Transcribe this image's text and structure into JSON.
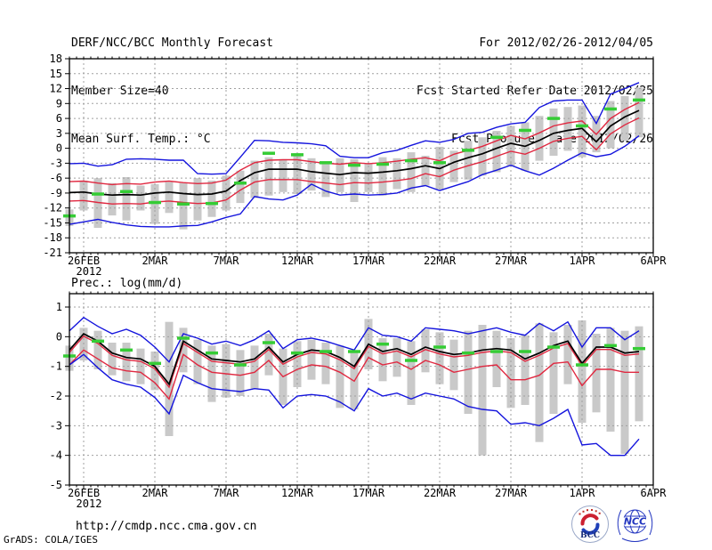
{
  "header": {
    "title": "DERF/NCC/BCC Monthly Forecast",
    "member_size": "Member Size=40",
    "variable_label": "Mean Surf. Temp.: °C",
    "for_range": "For 2012/02/26-2012/04/05",
    "refer_date": "Fcst Started Refer Date 2012/02/25",
    "produced_date": "Fcst Produced Date 2012/02/26"
  },
  "prec_label": "Prec.: log(mm/d)",
  "footer": {
    "url": "http://cmdp.ncc.cma.gov.cn",
    "credit": "GrADS: COLA/IGES",
    "logos": [
      {
        "label": "BCC"
      },
      {
        "label": "NCC"
      }
    ]
  },
  "colors": {
    "envelope": "#1414dd",
    "quartile": "#e02840",
    "median": "#000000",
    "observation": "#35cc35",
    "spread_bar": "#c9c9c9",
    "grid": "#a0a0a0",
    "frame": "#000000"
  },
  "chart_data": [
    {
      "id": "temperature-chart",
      "type": "line",
      "title": "Mean Surf. Temp.: °C",
      "ylim": [
        -21,
        18
      ],
      "yticks": [
        18,
        15,
        12,
        9,
        6,
        3,
        0,
        -3,
        -6,
        -9,
        -12,
        -15,
        -18,
        -21
      ],
      "grid": true,
      "x_axis": {
        "days_span": 41,
        "tick_days": [
          1,
          6,
          11,
          16,
          21,
          26,
          31,
          36,
          41
        ],
        "tick_labels": [
          "26FEB",
          "2MAR",
          "7MAR",
          "12MAR",
          "17MAR",
          "22MAR",
          "27MAR",
          "1APR",
          "6APR"
        ],
        "year_label": "2012"
      },
      "series": [
        {
          "name": "envelope-upper",
          "color": "#1414dd",
          "values": [
            -3.1,
            -3.0,
            -3.6,
            -3.3,
            -2.2,
            -2.1,
            -2.2,
            -2.4,
            -2.4,
            -5.1,
            -5.2,
            -5.1,
            -1.8,
            1.6,
            1.5,
            1.2,
            1.1,
            0.9,
            0.5,
            -1.6,
            -1.9,
            -1.9,
            -0.9,
            -0.4,
            0.6,
            1.5,
            1.2,
            1.8,
            3.0,
            3.2,
            4.2,
            4.9,
            5.2,
            8.2,
            9.5,
            9.7,
            9.7,
            5.0,
            10.9,
            12.0,
            13.2
          ]
        },
        {
          "name": "quartile-upper",
          "color": "#e02840",
          "values": [
            -6.7,
            -6.6,
            -7.0,
            -7.3,
            -7.1,
            -7.2,
            -6.8,
            -6.6,
            -6.9,
            -7.1,
            -7.0,
            -6.4,
            -4.4,
            -2.9,
            -2.4,
            -2.3,
            -2.3,
            -2.7,
            -3.0,
            -3.2,
            -2.9,
            -3.1,
            -2.9,
            -2.6,
            -2.2,
            -1.9,
            -2.5,
            -1.2,
            -0.4,
            0.4,
            1.5,
            2.6,
            1.9,
            3.1,
            4.5,
            5.1,
            5.5,
            2.8,
            6.0,
            7.8,
            9.2
          ]
        },
        {
          "name": "median",
          "color": "#000000",
          "values": [
            -8.9,
            -8.8,
            -9.2,
            -9.4,
            -9.3,
            -9.4,
            -9.0,
            -8.8,
            -9.1,
            -9.3,
            -9.2,
            -8.6,
            -6.5,
            -4.9,
            -4.2,
            -4.2,
            -4.2,
            -4.7,
            -5.0,
            -5.3,
            -4.9,
            -5.0,
            -4.8,
            -4.5,
            -4.1,
            -3.5,
            -4.1,
            -2.8,
            -1.9,
            -1.1,
            0.0,
            1.0,
            0.4,
            1.6,
            3.0,
            3.6,
            4.0,
            1.3,
            4.5,
            6.3,
            7.6
          ]
        },
        {
          "name": "quartile-lower",
          "color": "#e02840",
          "values": [
            -10.6,
            -10.5,
            -10.9,
            -11.2,
            -11.1,
            -11.2,
            -10.8,
            -10.6,
            -10.9,
            -11.1,
            -11.0,
            -10.4,
            -8.4,
            -6.8,
            -6.3,
            -6.3,
            -6.3,
            -6.7,
            -7.0,
            -7.3,
            -6.9,
            -7.0,
            -6.8,
            -6.5,
            -6.1,
            -5.1,
            -5.7,
            -4.4,
            -3.5,
            -2.7,
            -1.6,
            -0.6,
            -1.2,
            0.0,
            1.4,
            2.0,
            2.4,
            -0.3,
            2.9,
            4.7,
            6.1
          ]
        },
        {
          "name": "envelope-lower",
          "color": "#1414dd",
          "values": [
            -15.3,
            -14.8,
            -14.3,
            -14.9,
            -15.4,
            -15.7,
            -15.8,
            -15.8,
            -15.6,
            -15.5,
            -14.8,
            -13.9,
            -13.2,
            -9.7,
            -10.2,
            -10.4,
            -9.4,
            -7.2,
            -8.6,
            -9.4,
            -9.2,
            -9.4,
            -9.3,
            -9.0,
            -8.0,
            -7.5,
            -8.5,
            -7.6,
            -6.7,
            -5.3,
            -4.4,
            -3.4,
            -4.5,
            -5.4,
            -4.0,
            -2.4,
            -0.9,
            -1.7,
            -1.2,
            0.4,
            2.5
          ]
        }
      ],
      "observation": {
        "name": "observation-dashes",
        "color": "#35cc35",
        "days": [
          0,
          2,
          4,
          6,
          8,
          10,
          12,
          14,
          16,
          18,
          20,
          22,
          24,
          26,
          28,
          30,
          32,
          34,
          36,
          38,
          40
        ],
        "values": [
          -13.6,
          -9.2,
          -8.7,
          -10.9,
          -11.2,
          -11.1,
          -7.0,
          -1.0,
          -1.3,
          -2.9,
          -3.4,
          -3.2,
          -2.5,
          -2.9,
          -0.4,
          2.2,
          3.6,
          6.0,
          4.5,
          7.9,
          9.7
        ]
      },
      "spread_bars": {
        "name": "member-spread-bars",
        "color": "#c9c9c9",
        "start_day": 0,
        "step": 1,
        "low": [
          -15.6,
          -12.5,
          -16.0,
          -13.5,
          -14.5,
          -12.5,
          -15.2,
          -13.0,
          -16.3,
          -14.5,
          -13.8,
          -12.5,
          -11.0,
          -10.0,
          -9.5,
          -8.8,
          -9.2,
          -8.5,
          -9.8,
          -8.8,
          -10.8,
          -8.8,
          -9.5,
          -8.2,
          -8.8,
          -7.5,
          -8.2,
          -6.8,
          -6.3,
          -5.5,
          -4.8,
          -3.5,
          -4.5,
          -2.5,
          -1.5,
          -0.5,
          -1.8,
          -0.8,
          0.0,
          1.5,
          2.2
        ],
        "high": [
          -12.3,
          -6.5,
          -6.0,
          -7.0,
          -5.8,
          -7.5,
          -7.2,
          -6.8,
          -7.0,
          -6.0,
          -6.5,
          -5.5,
          -4.5,
          -2.5,
          -1.8,
          -2.2,
          -1.0,
          -2.0,
          -2.8,
          -2.0,
          -2.2,
          -3.0,
          -1.8,
          -2.0,
          -0.8,
          -1.5,
          0.3,
          -0.5,
          1.5,
          2.2,
          3.5,
          4.5,
          5.2,
          6.5,
          8.0,
          8.3,
          8.6,
          6.5,
          9.5,
          10.5,
          12.2
        ]
      }
    },
    {
      "id": "precipitation-chart",
      "type": "line",
      "title": "Prec.: log(mm/d)",
      "ylim": [
        -5,
        1.45
      ],
      "yticks": [
        1,
        0,
        -1,
        -2,
        -3,
        -4,
        -5
      ],
      "grid": true,
      "x_axis": {
        "days_span": 41,
        "tick_days": [
          1,
          6,
          11,
          16,
          21,
          26,
          31,
          36,
          41
        ],
        "tick_labels": [
          "26FEB",
          "2MAR",
          "7MAR",
          "12MAR",
          "17MAR",
          "22MAR",
          "27MAR",
          "1APR",
          "6APR"
        ],
        "year_label": "2012"
      },
      "series": [
        {
          "name": "envelope-upper",
          "color": "#1414dd",
          "values": [
            0.2,
            0.65,
            0.35,
            0.1,
            0.25,
            0.05,
            -0.35,
            -0.85,
            0.1,
            -0.05,
            -0.25,
            -0.15,
            -0.3,
            -0.1,
            0.2,
            -0.4,
            -0.1,
            -0.05,
            -0.15,
            -0.3,
            -0.45,
            0.3,
            0.05,
            0.0,
            -0.15,
            0.3,
            0.25,
            0.2,
            0.1,
            0.2,
            0.3,
            0.15,
            0.05,
            0.45,
            0.2,
            0.5,
            -0.35,
            0.3,
            0.3,
            -0.1,
            0.2
          ]
        },
        {
          "name": "quartile-upper",
          "color": "#e02840",
          "values": [
            -0.53,
            0.02,
            -0.23,
            -0.63,
            -0.78,
            -0.83,
            -1.08,
            -1.7,
            -0.23,
            -0.53,
            -0.83,
            -0.88,
            -0.93,
            -0.83,
            -0.43,
            -0.93,
            -0.68,
            -0.53,
            -0.58,
            -0.78,
            -1.08,
            -0.33,
            -0.58,
            -0.48,
            -0.68,
            -0.43,
            -0.58,
            -0.68,
            -0.63,
            -0.53,
            -0.48,
            -0.53,
            -0.83,
            -0.63,
            -0.38,
            -0.23,
            -0.98,
            -0.43,
            -0.43,
            -0.63,
            -0.58
          ]
        },
        {
          "name": "median",
          "color": "#000000",
          "values": [
            -0.45,
            0.1,
            -0.15,
            -0.55,
            -0.7,
            -0.75,
            -1.0,
            -1.6,
            -0.15,
            -0.45,
            -0.75,
            -0.8,
            -0.85,
            -0.75,
            -0.35,
            -0.85,
            -0.6,
            -0.45,
            -0.5,
            -0.7,
            -1.0,
            -0.25,
            -0.5,
            -0.4,
            -0.6,
            -0.35,
            -0.5,
            -0.6,
            -0.55,
            -0.45,
            -0.4,
            -0.45,
            -0.75,
            -0.55,
            -0.3,
            -0.15,
            -0.9,
            -0.35,
            -0.35,
            -0.55,
            -0.5
          ]
        },
        {
          "name": "quartile-lower",
          "color": "#e02840",
          "values": [
            -0.95,
            -0.45,
            -0.75,
            -1.05,
            -1.15,
            -1.2,
            -1.55,
            -2.1,
            -0.6,
            -0.95,
            -1.2,
            -1.25,
            -1.3,
            -1.2,
            -0.8,
            -1.35,
            -1.1,
            -0.95,
            -1.0,
            -1.2,
            -1.5,
            -0.7,
            -0.95,
            -0.85,
            -1.1,
            -0.8,
            -0.95,
            -1.2,
            -1.1,
            -1.0,
            -0.95,
            -1.45,
            -1.45,
            -1.3,
            -0.9,
            -0.85,
            -1.65,
            -1.1,
            -1.1,
            -1.2,
            -1.2
          ]
        },
        {
          "name": "envelope-lower",
          "color": "#1414dd",
          "values": [
            -0.95,
            -0.6,
            -1.05,
            -1.45,
            -1.6,
            -1.7,
            -2.05,
            -2.6,
            -1.3,
            -1.55,
            -1.75,
            -1.8,
            -1.85,
            -1.75,
            -1.8,
            -2.4,
            -2.0,
            -1.95,
            -2.0,
            -2.2,
            -2.5,
            -1.75,
            -2.0,
            -1.9,
            -2.1,
            -1.9,
            -2.0,
            -2.1,
            -2.35,
            -2.45,
            -2.5,
            -2.95,
            -2.9,
            -3.0,
            -2.75,
            -2.45,
            -3.65,
            -3.6,
            -4.0,
            -4.0,
            -3.45
          ]
        }
      ],
      "observation": {
        "name": "observation-dashes",
        "color": "#35cc35",
        "days": [
          0,
          2,
          4,
          6,
          8,
          10,
          12,
          14,
          16,
          18,
          20,
          22,
          24,
          26,
          28,
          30,
          32,
          34,
          36,
          38,
          40
        ],
        "values": [
          -0.65,
          -0.15,
          -0.45,
          -0.9,
          -0.05,
          -0.55,
          -0.95,
          -0.2,
          -0.55,
          -0.5,
          -0.5,
          -0.25,
          -0.8,
          -0.35,
          -0.55,
          -0.5,
          -0.5,
          -0.35,
          -0.95,
          -0.3,
          -0.4
        ]
      },
      "spread_bars": {
        "name": "member-spread-bars",
        "color": "#c9c9c9",
        "start_day": 0,
        "step": 1,
        "low": [
          -1.15,
          -0.8,
          -1.1,
          -1.3,
          -1.5,
          -1.6,
          -1.8,
          -3.35,
          -1.2,
          -1.6,
          -2.2,
          -2.05,
          -2.0,
          -1.75,
          -1.3,
          -2.3,
          -1.7,
          -1.45,
          -1.6,
          -2.4,
          -2.45,
          -1.1,
          -1.5,
          -1.35,
          -2.3,
          -1.2,
          -1.6,
          -1.8,
          -2.6,
          -4.0,
          -1.7,
          -2.4,
          -2.3,
          -3.55,
          -2.6,
          -1.6,
          -2.9,
          -2.55,
          -3.2,
          -3.95,
          -2.85
        ],
        "high": [
          -0.3,
          0.3,
          0.2,
          -0.2,
          -0.2,
          -0.4,
          -0.5,
          0.5,
          0.3,
          -0.1,
          -0.3,
          -0.25,
          -0.45,
          -0.3,
          0.1,
          -0.4,
          -0.15,
          -0.1,
          -0.2,
          -0.3,
          -0.5,
          0.6,
          -0.05,
          -0.05,
          -0.15,
          0.25,
          0.15,
          -0.1,
          0.2,
          0.4,
          0.2,
          -0.05,
          0.05,
          0.45,
          0.15,
          0.4,
          0.55,
          0.1,
          0.3,
          0.2,
          0.35
        ]
      }
    }
  ]
}
